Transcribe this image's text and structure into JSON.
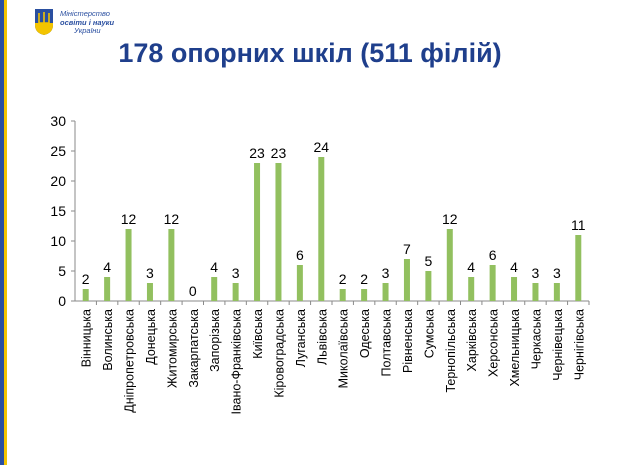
{
  "header": {
    "ministry_line1": "Міністерство",
    "ministry_line2": "освіти і науки",
    "ministry_line3": "України"
  },
  "title": "178 опорних шкіл (511 філій)",
  "colors": {
    "bar": "#92c05f",
    "title": "#1f3f8c",
    "brand_blue": "#2a4fa0",
    "brand_yellow": "#f3c400"
  },
  "chart_data": {
    "type": "bar",
    "title": "178 опорних шкіл (511 філій)",
    "xlabel": "",
    "ylabel": "",
    "ylim": [
      0,
      30
    ],
    "yticks": [
      0,
      5,
      10,
      15,
      20,
      25,
      30
    ],
    "grid": false,
    "legend": "none",
    "categories": [
      "Вінницька",
      "Волинська",
      "Дніпропетровська",
      "Донецька",
      "Житомирська",
      "Закарпатська",
      "Запорізька",
      "Івано-Франківська",
      "Київська",
      "Кіровоградська",
      "Луганська",
      "Львівська",
      "Миколаївська",
      "Одеська",
      "Полтавська",
      "Рівненська",
      "Сумська",
      "Тернопільська",
      "Харківська",
      "Херсонська",
      "Хмельницька",
      "Черкаська",
      "Чернівецька",
      "Чернігівська"
    ],
    "values": [
      2,
      4,
      12,
      3,
      12,
      0,
      4,
      3,
      23,
      23,
      6,
      24,
      2,
      2,
      3,
      7,
      5,
      12,
      4,
      6,
      4,
      3,
      3,
      11
    ]
  }
}
